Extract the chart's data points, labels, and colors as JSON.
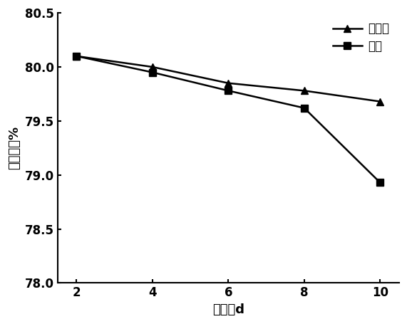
{
  "x": [
    2,
    4,
    6,
    8,
    10
  ],
  "series1_y": [
    80.1,
    80.0,
    79.85,
    79.78,
    79.68
  ],
  "series2_y": [
    80.1,
    79.95,
    79.78,
    79.62,
    78.93
  ],
  "series1_label": "喷菌液",
  "series2_label": "喷水",
  "xlabel": "时间／d",
  "ylabel": "含水量／%",
  "xlim": [
    1.5,
    10.5
  ],
  "ylim": [
    78.0,
    80.5
  ],
  "yticks": [
    78.0,
    78.5,
    79.0,
    79.5,
    80.0,
    80.5
  ],
  "xticks": [
    2,
    4,
    6,
    8,
    10
  ],
  "line_color": "#000000",
  "marker_size": 7,
  "linewidth": 1.8,
  "background_color": "#ffffff"
}
